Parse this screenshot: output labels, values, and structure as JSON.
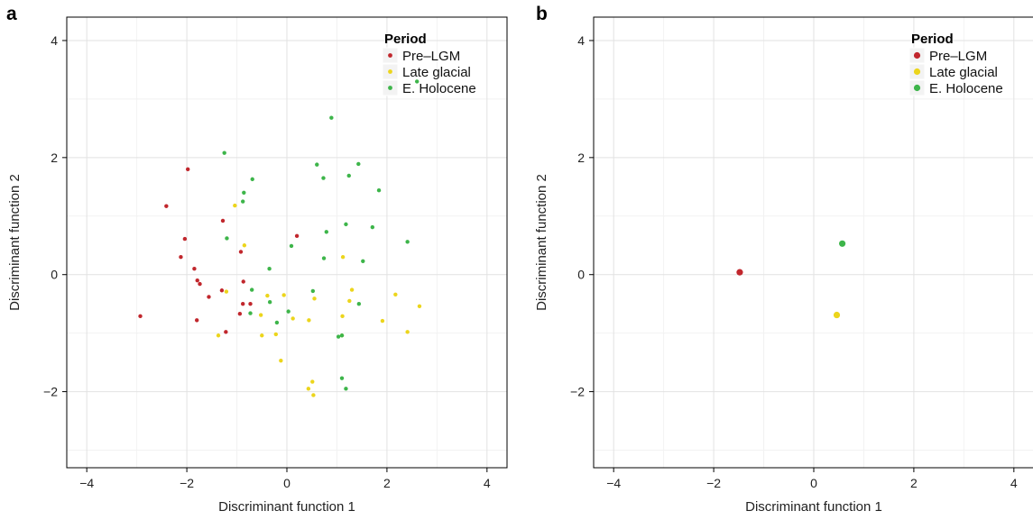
{
  "panels": [
    {
      "letter": "a",
      "chart_data": {
        "type": "scatter",
        "xlabel": "Discriminant function 1",
        "ylabel": "Discriminant function 2",
        "xlim": [
          -4.4,
          4.4
        ],
        "ylim": [
          -3.3,
          4.4
        ],
        "xticks": [
          -4,
          -2,
          0,
          2,
          4
        ],
        "yticks": [
          -2,
          0,
          2,
          4
        ],
        "grid": true,
        "legend": {
          "title": "Period",
          "placement": "top-right"
        },
        "point_size": "small",
        "series": [
          {
            "name": "Pre–LGM",
            "color": "#c1272d",
            "points": [
              [
                -1.98,
                1.8
              ],
              [
                -2.41,
                1.17
              ],
              [
                -1.28,
                0.92
              ],
              [
                -2.04,
                0.61
              ],
              [
                -2.12,
                0.3
              ],
              [
                -1.85,
                0.1
              ],
              [
                -1.79,
                -0.1
              ],
              [
                -1.74,
                -0.16
              ],
              [
                -1.56,
                -0.38
              ],
              [
                -1.3,
                -0.27
              ],
              [
                -0.87,
                -0.12
              ],
              [
                -0.92,
                0.39
              ],
              [
                -0.88,
                -0.5
              ],
              [
                -0.73,
                -0.5
              ],
              [
                -0.94,
                -0.67
              ],
              [
                -1.8,
                -0.78
              ],
              [
                -1.22,
                -0.98
              ],
              [
                -2.93,
                -0.71
              ],
              [
                0.2,
                0.66
              ]
            ]
          },
          {
            "name": "Late glacial",
            "color": "#ecd51c",
            "points": [
              [
                -1.04,
                1.18
              ],
              [
                -0.85,
                0.5
              ],
              [
                -1.21,
                -0.29
              ],
              [
                -0.52,
                -0.69
              ],
              [
                -0.39,
                -0.36
              ],
              [
                -0.06,
                -0.35
              ],
              [
                0.12,
                -0.75
              ],
              [
                0.44,
                -0.78
              ],
              [
                0.55,
                -0.41
              ],
              [
                -0.5,
                -1.04
              ],
              [
                -0.22,
                -1.02
              ],
              [
                -1.37,
                -1.04
              ],
              [
                -0.12,
                -1.47
              ],
              [
                0.43,
                -1.95
              ],
              [
                0.51,
                -1.83
              ],
              [
                0.53,
                -2.06
              ],
              [
                1.12,
                0.3
              ],
              [
                1.25,
                -0.45
              ],
              [
                1.3,
                -0.26
              ],
              [
                1.11,
                -0.71
              ],
              [
                1.1,
                -1.04
              ],
              [
                1.91,
                -0.79
              ],
              [
                2.17,
                -0.34
              ],
              [
                2.41,
                -0.98
              ],
              [
                2.65,
                -0.54
              ]
            ]
          },
          {
            "name": "E. Holocene",
            "color": "#3db54a",
            "points": [
              [
                -1.25,
                2.08
              ],
              [
                -0.69,
                1.63
              ],
              [
                -0.86,
                1.4
              ],
              [
                -0.88,
                1.25
              ],
              [
                -1.2,
                0.62
              ],
              [
                0.09,
                0.49
              ],
              [
                0.89,
                2.68
              ],
              [
                0.6,
                1.88
              ],
              [
                0.73,
                1.65
              ],
              [
                1.43,
                1.89
              ],
              [
                1.24,
                1.69
              ],
              [
                1.84,
                1.44
              ],
              [
                1.18,
                0.86
              ],
              [
                1.71,
                0.81
              ],
              [
                0.79,
                0.73
              ],
              [
                0.74,
                0.28
              ],
              [
                1.52,
                0.23
              ],
              [
                2.41,
                0.56
              ],
              [
                -0.35,
                0.1
              ],
              [
                -0.7,
                -0.26
              ],
              [
                -0.34,
                -0.47
              ],
              [
                -0.2,
                -0.82
              ],
              [
                0.03,
                -0.63
              ],
              [
                -0.73,
                -0.66
              ],
              [
                0.52,
                -0.28
              ],
              [
                1.44,
                -0.5
              ],
              [
                1.03,
                -1.06
              ],
              [
                1.1,
                -1.04
              ],
              [
                1.1,
                -1.77
              ],
              [
                1.18,
                -1.95
              ],
              [
                2.6,
                3.3
              ]
            ]
          }
        ]
      }
    },
    {
      "letter": "b",
      "chart_data": {
        "type": "scatter",
        "xlabel": "Discriminant function 1",
        "ylabel": "Discriminant function 2",
        "xlim": [
          -4.4,
          4.4
        ],
        "ylim": [
          -3.3,
          4.4
        ],
        "xticks": [
          -4,
          -2,
          0,
          2,
          4
        ],
        "yticks": [
          -2,
          0,
          2,
          4
        ],
        "grid": true,
        "legend": {
          "title": "Period",
          "placement": "top-right"
        },
        "point_size": "large",
        "series": [
          {
            "name": "Pre–LGM",
            "color": "#c1272d",
            "points": [
              [
                -1.48,
                0.04
              ]
            ]
          },
          {
            "name": "Late glacial",
            "color": "#ecd51c",
            "points": [
              [
                0.46,
                -0.69
              ]
            ]
          },
          {
            "name": "E. Holocene",
            "color": "#3db54a",
            "points": [
              [
                0.57,
                0.53
              ]
            ]
          }
        ]
      }
    }
  ]
}
